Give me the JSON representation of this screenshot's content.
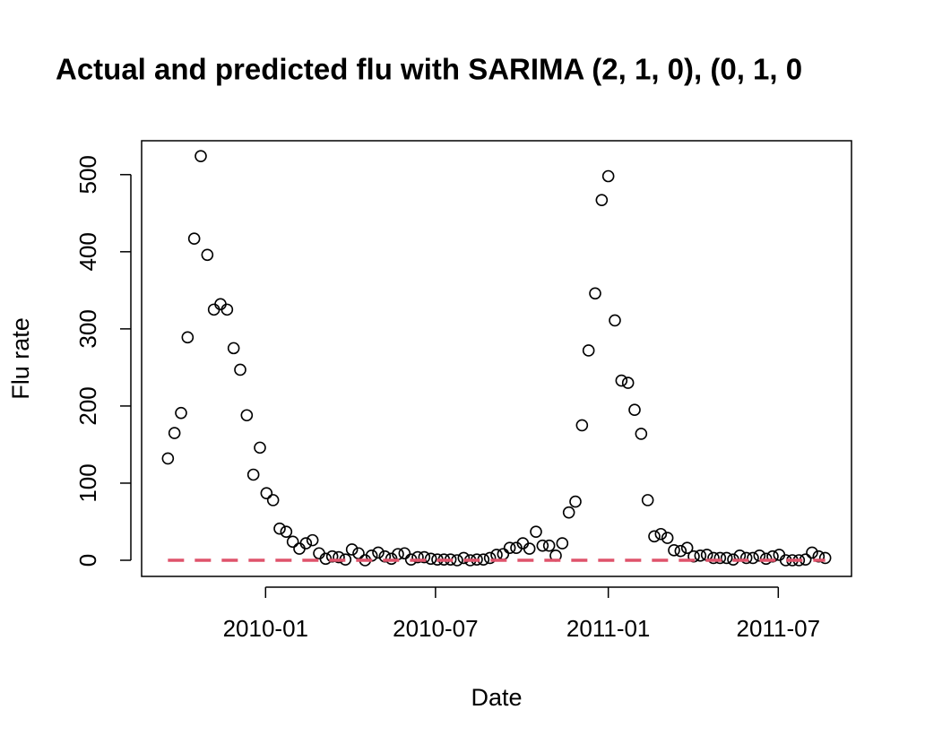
{
  "chart_data": {
    "type": "scatter",
    "title": "Actual and predicted flu with SARIMA (2, 1, 0), (0, 1, 0",
    "xlabel": "Date",
    "ylabel": "Flu rate",
    "xlim": [
      -4,
      104
    ],
    "ylim": [
      -20.92,
      543.92
    ],
    "xticks": [
      {
        "value": 14.86,
        "label": "2010-01"
      },
      {
        "value": 40.71,
        "label": "2010-07"
      },
      {
        "value": 67.0,
        "label": "2011-01"
      },
      {
        "value": 92.86,
        "label": "2011-07"
      }
    ],
    "yticks": [
      0,
      100,
      200,
      300,
      400,
      500
    ],
    "series": [
      {
        "type": "scatter",
        "color": "#000000",
        "values": [
          132,
          165,
          191,
          289,
          417,
          524,
          396,
          325,
          332,
          325,
          275,
          247,
          188,
          111,
          146,
          87,
          78,
          41,
          37,
          24,
          15,
          22,
          26,
          9,
          2,
          5,
          4,
          1,
          14,
          9,
          0,
          6,
          10,
          5,
          2,
          8,
          9,
          1,
          4,
          4,
          2,
          1,
          1,
          1,
          0,
          3,
          0,
          1,
          1,
          3,
          7,
          8,
          16,
          16,
          22,
          15,
          37,
          19,
          19,
          6,
          22,
          62,
          76,
          175,
          272,
          346,
          467,
          498,
          311,
          233,
          230,
          195,
          164,
          78,
          31,
          34,
          29,
          13,
          12,
          16,
          5,
          6,
          7,
          3,
          3,
          3,
          1,
          6,
          3,
          3,
          6,
          2,
          5,
          7,
          0,
          0,
          0,
          1,
          10,
          5,
          3
        ]
      },
      {
        "type": "line",
        "color": "#df536b",
        "dashed": true,
        "values": [
          0,
          0,
          0,
          0,
          0,
          0,
          0,
          0,
          0,
          0,
          0,
          0,
          0,
          0,
          0,
          0,
          0,
          0,
          0,
          0,
          0,
          0,
          0,
          0,
          0,
          0,
          0,
          0,
          0,
          0,
          0,
          0,
          0,
          0,
          0,
          0,
          0,
          0,
          0,
          0,
          0,
          0,
          0,
          0,
          0,
          0,
          0,
          0,
          0,
          0,
          0,
          0,
          0,
          0,
          0,
          0,
          0,
          0,
          0,
          0,
          0,
          0,
          0,
          0,
          0,
          0,
          0,
          0,
          0,
          0,
          0,
          0,
          0,
          0,
          0,
          0,
          0,
          0,
          0,
          0,
          0,
          0,
          0,
          0,
          0,
          0,
          0,
          0,
          0,
          0,
          0,
          0,
          0,
          0,
          0,
          0,
          0,
          0,
          0,
          0,
          0
        ]
      }
    ]
  }
}
